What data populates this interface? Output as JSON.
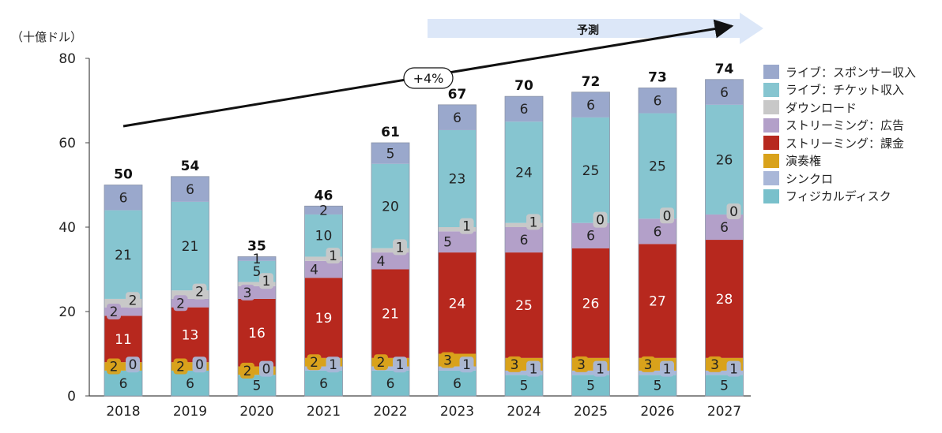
{
  "chart_data": {
    "type": "bar",
    "stacked": true,
    "unit_label": "（十億ドル）",
    "categories": [
      "2018",
      "2019",
      "2020",
      "2021",
      "2022",
      "2023",
      "2024",
      "2025",
      "2026",
      "2027"
    ],
    "series": [
      {
        "name": "フィジカルディスク",
        "color": "#79c0cb",
        "values": [
          6,
          6,
          5,
          6,
          6,
          6,
          5,
          5,
          5,
          5
        ]
      },
      {
        "name": "シンクロ",
        "color": "#a9b7d8",
        "values": [
          0,
          0,
          0,
          1,
          1,
          1,
          1,
          1,
          1,
          1
        ]
      },
      {
        "name": "演奏権",
        "color": "#d9a21b",
        "values": [
          2,
          2,
          2,
          2,
          2,
          3,
          3,
          3,
          3,
          3
        ]
      },
      {
        "name": "ストリーミング：課金",
        "color": "#b7281e",
        "values": [
          11,
          13,
          16,
          19,
          21,
          24,
          25,
          26,
          27,
          28
        ]
      },
      {
        "name": "ストリーミング：広告",
        "color": "#b3a0c9",
        "values": [
          2,
          2,
          3,
          4,
          4,
          5,
          6,
          6,
          6,
          6
        ]
      },
      {
        "name": "ダウンロード",
        "color": "#c8c8c8",
        "values": [
          2,
          2,
          1,
          1,
          1,
          1,
          1,
          0,
          0,
          0
        ]
      },
      {
        "name": "ライブ：チケット収入",
        "color": "#86c5d0",
        "values": [
          21,
          21,
          5,
          10,
          20,
          23,
          24,
          25,
          25,
          26
        ]
      },
      {
        "name": "ライブ：スポンサー収入",
        "color": "#9aa8cc",
        "values": [
          6,
          6,
          1,
          2,
          5,
          6,
          6,
          6,
          6,
          6
        ]
      }
    ],
    "totals": [
      50,
      54,
      35,
      46,
      61,
      67,
      70,
      72,
      73,
      74
    ],
    "ylim": [
      0,
      80
    ],
    "yticks": [
      0,
      20,
      40,
      60,
      80
    ],
    "forecast_label": "予測",
    "growth_label": "+4%",
    "legend_position": "right"
  }
}
